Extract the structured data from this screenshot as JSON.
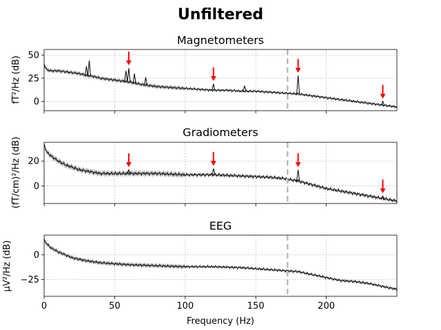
{
  "chart_data": {
    "type": "line",
    "title": "Unfiltered",
    "xlabel": "Frequency (Hz)",
    "xlim": [
      0,
      250
    ],
    "xticks": [
      0,
      50,
      100,
      150,
      200
    ],
    "grid": true,
    "marker_line_hz": 172.5,
    "panels": [
      {
        "title": "Magnetometers",
        "ylabel": "fT²/Hz (dB)",
        "ylim": [
          -10,
          56
        ],
        "yticks": [
          0,
          25,
          50
        ],
        "ytick_labels": [
          "0",
          "25",
          "50"
        ],
        "arrows_hz": [
          60,
          120,
          180,
          240
        ],
        "band_halfwidth_db": 1.5,
        "series": [
          {
            "x": [
              0,
              2,
              5,
              10,
              15,
              20,
              25,
              30,
              35,
              40,
              45,
              50,
              55,
              60,
              70,
              80,
              90,
              100,
              110,
              120,
              130,
              140,
              150,
              160,
              170,
              180,
              190,
              200,
              210,
              220,
              230,
              240,
              250
            ],
            "values": [
              40,
              34,
              33,
              33,
              32,
              31,
              30,
              28,
              27,
              25,
              24,
              23,
              22,
              21,
              18,
              16,
              15,
              14,
              13,
              12,
              12,
              11,
              11,
              10,
              9,
              8,
              6,
              4,
              2,
              0,
              -2,
              -4,
              -6
            ]
          }
        ],
        "peaks": [
          {
            "x": 30,
            "y": 38
          },
          {
            "x": 32,
            "y": 44
          },
          {
            "x": 58,
            "y": 33
          },
          {
            "x": 60,
            "y": 36
          },
          {
            "x": 64,
            "y": 30
          },
          {
            "x": 72,
            "y": 26
          },
          {
            "x": 120,
            "y": 19
          },
          {
            "x": 142,
            "y": 17
          },
          {
            "x": 180,
            "y": 28
          },
          {
            "x": 240,
            "y": 0
          }
        ]
      },
      {
        "title": "Gradiometers",
        "ylabel": "(fT/cm)²/Hz (dB)",
        "ylim": [
          -14,
          35
        ],
        "yticks": [
          0,
          20
        ],
        "ytick_labels": [
          "0",
          "20"
        ],
        "arrows_hz": [
          60,
          120,
          180,
          240
        ],
        "band_halfwidth_db": 1.5,
        "series": [
          {
            "x": [
              0,
              2,
              5,
              10,
              15,
              20,
              25,
              30,
              35,
              40,
              50,
              60,
              80,
              100,
              120,
              140,
              160,
              170,
              180,
              190,
              200,
              210,
              220,
              230,
              240,
              250
            ],
            "values": [
              33,
              27,
              24,
              20,
              17,
              15,
              13,
              12,
              11,
              10,
              10,
              10,
              10,
              9,
              9,
              8,
              7,
              6,
              4,
              1,
              -2,
              -4,
              -6,
              -8,
              -10,
              -12
            ]
          }
        ],
        "peaks": [
          {
            "x": 60,
            "y": 13
          },
          {
            "x": 120,
            "y": 14
          },
          {
            "x": 180,
            "y": 13
          },
          {
            "x": 240,
            "y": -8
          }
        ]
      },
      {
        "title": "EEG",
        "ylabel": "µV²/Hz (dB)",
        "ylim": [
          -42,
          20
        ],
        "yticks": [
          0,
          -25
        ],
        "ytick_labels": [
          "0",
          "−25"
        ],
        "arrows_hz": [],
        "band_halfwidth_db": 1.5,
        "series": [
          {
            "x": [
              0,
              2,
              5,
              10,
              15,
              20,
              30,
              40,
              50,
              60,
              80,
              100,
              120,
              140,
              160,
              170,
              180,
              190,
              200,
              210,
              220,
              230,
              240,
              250
            ],
            "values": [
              15,
              11,
              7,
              3,
              0,
              -3,
              -6,
              -8,
              -9,
              -10,
              -11,
              -12,
              -12,
              -13,
              -15,
              -16,
              -17,
              -20,
              -23,
              -26,
              -27,
              -29,
              -32,
              -35
            ]
          }
        ],
        "peaks": []
      }
    ]
  }
}
